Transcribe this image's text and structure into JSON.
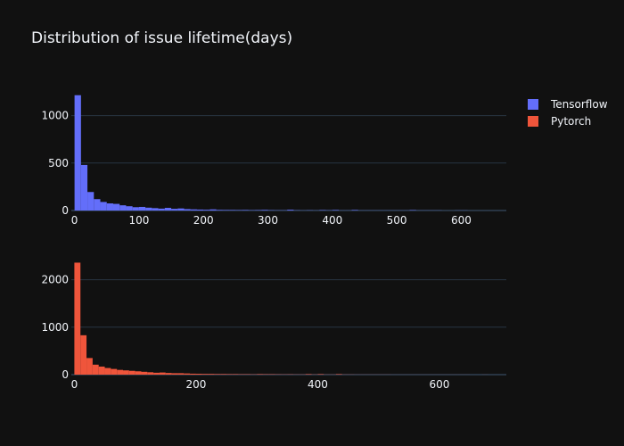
{
  "chart_title": "Distribution of issue lifetime(days)",
  "legend": [
    {
      "name": "Tensorflow",
      "color": "#636efa"
    },
    {
      "name": "Pytorch",
      "color": "#ef553b"
    }
  ],
  "chart_data": [
    {
      "type": "bar",
      "title": "Distribution of issue lifetime(days)",
      "series_name": "Tensorflow",
      "color": "#636efa",
      "xlabel": "",
      "ylabel": "",
      "xlim": [
        -5,
        670
      ],
      "ylim": [
        0,
        1250
      ],
      "x_ticks": [
        0,
        100,
        200,
        300,
        400,
        500,
        600
      ],
      "y_ticks": [
        0,
        500,
        1000
      ],
      "bin_width": 10,
      "bin_starts": [
        0,
        10,
        20,
        30,
        40,
        50,
        60,
        70,
        80,
        90,
        100,
        110,
        120,
        130,
        140,
        150,
        160,
        170,
        180,
        190,
        200,
        210,
        220,
        230,
        240,
        250,
        260,
        270,
        280,
        290,
        300,
        310,
        320,
        330,
        340,
        350,
        360,
        370,
        380,
        390,
        400,
        410,
        420,
        430,
        440,
        450,
        460,
        470,
        480,
        490,
        500,
        510,
        520,
        530,
        540,
        550,
        560,
        570,
        580,
        590,
        600,
        610,
        620,
        630,
        640,
        650
      ],
      "values": [
        1215,
        480,
        195,
        120,
        90,
        75,
        70,
        55,
        45,
        35,
        38,
        30,
        25,
        20,
        28,
        18,
        22,
        15,
        12,
        10,
        8,
        12,
        6,
        5,
        5,
        4,
        5,
        3,
        4,
        6,
        3,
        2,
        2,
        8,
        2,
        1,
        2,
        1,
        4,
        2,
        5,
        1,
        1,
        5,
        1,
        1,
        1,
        1,
        1,
        1,
        1,
        1,
        4,
        1,
        1,
        1,
        1,
        0,
        0,
        1,
        1,
        0,
        0,
        0,
        0,
        0
      ],
      "grid": true,
      "legend_position": "top-right"
    },
    {
      "type": "bar",
      "series_name": "Pytorch",
      "color": "#ef553b",
      "xlabel": "",
      "ylabel": "",
      "xlim": [
        -5,
        710
      ],
      "ylim": [
        0,
        2500
      ],
      "x_ticks": [
        0,
        200,
        400,
        600
      ],
      "y_ticks": [
        0,
        1000,
        2000
      ],
      "bin_width": 10,
      "bin_starts": [
        0,
        10,
        20,
        30,
        40,
        50,
        60,
        70,
        80,
        90,
        100,
        110,
        120,
        130,
        140,
        150,
        160,
        170,
        180,
        190,
        200,
        210,
        220,
        230,
        240,
        250,
        260,
        270,
        280,
        290,
        300,
        310,
        320,
        330,
        340,
        350,
        360,
        370,
        380,
        390,
        400,
        410,
        420,
        430,
        440,
        450,
        460,
        470,
        480,
        490,
        500,
        510,
        520,
        530,
        540,
        550,
        560,
        570,
        580,
        590,
        600,
        610,
        620,
        630,
        640,
        650,
        660,
        670,
        680,
        690,
        700
      ],
      "values": [
        2360,
        830,
        350,
        210,
        170,
        140,
        120,
        100,
        90,
        80,
        70,
        60,
        50,
        40,
        45,
        35,
        30,
        30,
        25,
        20,
        18,
        15,
        15,
        12,
        12,
        10,
        10,
        8,
        8,
        6,
        10,
        8,
        8,
        6,
        5,
        6,
        4,
        4,
        10,
        4,
        10,
        3,
        3,
        10,
        3,
        3,
        2,
        2,
        2,
        2,
        2,
        2,
        1,
        1,
        1,
        1,
        1,
        1,
        1,
        1,
        1,
        1,
        1,
        1,
        1,
        0,
        0,
        1,
        0,
        0,
        0
      ],
      "grid": true
    }
  ]
}
